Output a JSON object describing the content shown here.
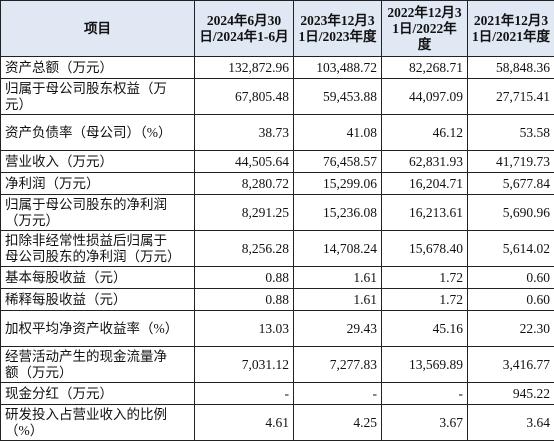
{
  "table": {
    "header": [
      "项目",
      "2024年6月30日/2024年1-6月",
      "2023年12月31日/2023年度",
      "2022年12月31日/2022年度",
      "2021年12月31日/2021年度"
    ],
    "rows": [
      [
        "资产总额（万元）",
        "132,872.96",
        "103,488.72",
        "82,268.71",
        "58,848.36"
      ],
      [
        "归属于母公司股东权益（万元）",
        "67,805.48",
        "59,453.88",
        "44,097.09",
        "27,715.41"
      ],
      [
        "资产负债率（母公司）（%）",
        "38.73",
        "41.08",
        "46.12",
        "53.58"
      ],
      [
        "营业收入（万元）",
        "44,505.64",
        "76,458.57",
        "62,831.93",
        "41,719.73"
      ],
      [
        "净利润（万元）",
        "8,280.72",
        "15,299.06",
        "16,204.71",
        "5,677.84"
      ],
      [
        "归属于母公司股东的净利润（万元）",
        "8,291.25",
        "15,236.08",
        "16,213.61",
        "5,690.96"
      ],
      [
        "扣除非经常性损益后归属于母公司股东的净利润（万元）",
        "8,256.28",
        "14,708.24",
        "15,678.40",
        "5,614.02"
      ],
      [
        "基本每股收益（元）",
        "0.88",
        "1.61",
        "1.72",
        "0.60"
      ],
      [
        "稀释每股收益（元）",
        "0.88",
        "1.61",
        "1.72",
        "0.60"
      ],
      [
        "加权平均净资产收益率（%）",
        "13.03",
        "29.43",
        "45.16",
        "22.30"
      ],
      [
        "经营活动产生的现金流量净额（万元）",
        "7,031.12",
        "7,277.83",
        "13,569.89",
        "3,416.77"
      ],
      [
        "现金分红（万元）",
        "-",
        "-",
        "-",
        "945.22"
      ],
      [
        "研发投入占营业收入的比例（%）",
        "4.61",
        "4.25",
        "3.67",
        "3.64"
      ]
    ]
  }
}
